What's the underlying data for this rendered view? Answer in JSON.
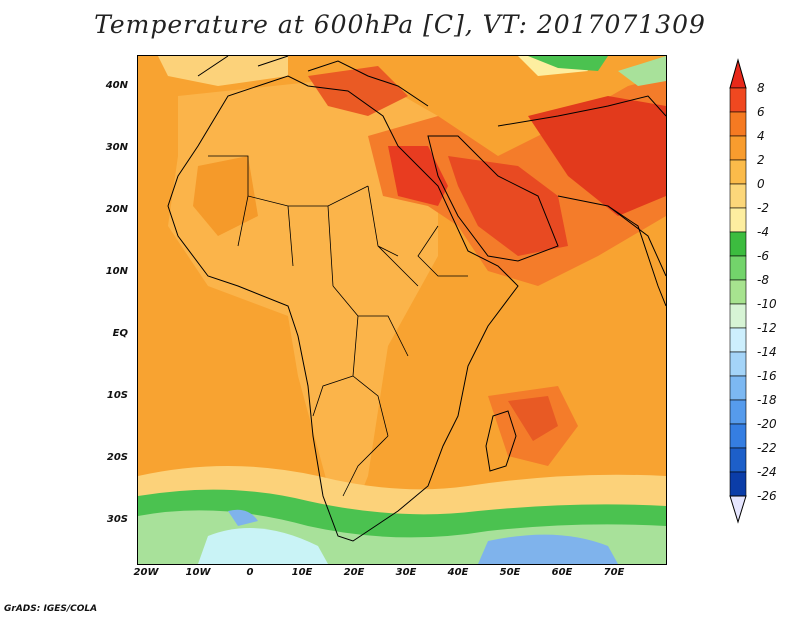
{
  "title": "Temperature at 600hPa [C], VT: 2017071309",
  "footer": "GrADS: IGES/COLA",
  "colors": {
    "bg": "#fcd27a",
    "orange": "#f8a331",
    "deep_orange": "#f47c2a",
    "red": "#e83c20",
    "green": "#4bc250",
    "light_green": "#a8e19a",
    "cyan": "#c9f3f6",
    "blue": "#7fb3ec",
    "land_outline": "#000000"
  },
  "axes": {
    "lat_labels": [
      "40N",
      "30N",
      "20N",
      "10N",
      "EQ",
      "10S",
      "20S",
      "30S"
    ],
    "lon_labels": [
      "20W",
      "10W",
      "0",
      "10E",
      "20E",
      "30E",
      "40E",
      "50E",
      "60E",
      "70E"
    ]
  },
  "colorbar": {
    "levels": [
      "8",
      "6",
      "4",
      "2",
      "0",
      "-2",
      "-4",
      "-6",
      "-8",
      "-10",
      "-12",
      "-14",
      "-16",
      "-18",
      "-20",
      "-22",
      "-24",
      "-26"
    ],
    "colors": [
      "#e8281a",
      "#f04820",
      "#f57a22",
      "#f89c2e",
      "#fbbb4a",
      "#fcd77a",
      "#fdeea0",
      "#3cbc3f",
      "#73d46b",
      "#a7e38f",
      "#d7f4d5",
      "#cdeffd",
      "#a4d4f8",
      "#7cb8f2",
      "#569bec",
      "#357ee2",
      "#1d5fc9",
      "#0b3da8",
      "#07157a"
    ]
  }
}
